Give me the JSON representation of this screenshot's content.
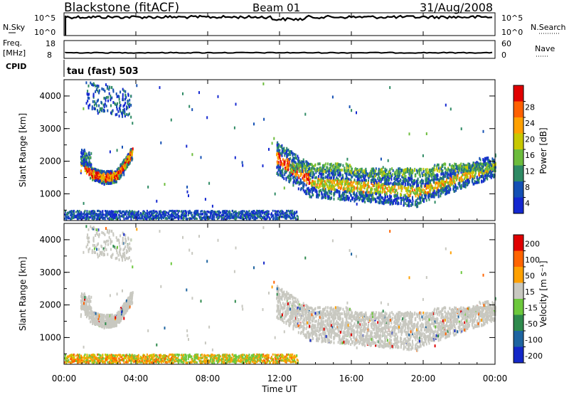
{
  "header": {
    "station": "Blackstone (fitACF)",
    "beam": "Beam 01",
    "date": "31/Aug/2008"
  },
  "status_panels": {
    "nsky_label": "N.Sky",
    "nsky_ticks": [
      "10^5",
      "10^0"
    ],
    "nsky_right_ticks": [
      "10^5",
      "10^0"
    ],
    "nsearch_label": "N.Search",
    "freq_label_1": "Freq.",
    "freq_label_2": "[MHz]",
    "freq_ticks": [
      "18",
      "8"
    ],
    "nave_ticks": [
      "60",
      "0"
    ],
    "nave_label": "Nave",
    "cpid_label": "CPID",
    "cpid_value": "tau (fast) 503"
  },
  "x_axis": {
    "label": "Time UT",
    "ticks": [
      "00:00",
      "04:00",
      "08:00",
      "12:00",
      "16:00",
      "20:00",
      "00:00"
    ]
  },
  "chart_data": [
    {
      "type": "heatmap",
      "name": "power",
      "xlabel": "Time UT",
      "ylabel": "Slant Range [km]",
      "yticks": [
        "1000",
        "2000",
        "3000",
        "4000"
      ],
      "xlim": [
        0,
        24
      ],
      "ylim": [
        180,
        4500
      ],
      "colorbar": {
        "label": "Power [dB]",
        "ticks": [
          "4",
          "8",
          "12",
          "16",
          "20",
          "24",
          "28"
        ],
        "colors": [
          "#1428d0",
          "#1450b4",
          "#2e8a64",
          "#6cbc3c",
          "#c8c800",
          "#ffa000",
          "#ff6000",
          "#e00000"
        ]
      },
      "regions": [
        {
          "t0": 0.9,
          "t1": 3.9,
          "r0": 1450,
          "r1": 2300,
          "note": "arc"
        },
        {
          "t0": 1.2,
          "t1": 3.7,
          "r0": 3600,
          "r1": 4450
        },
        {
          "t0": 11.8,
          "t1": 24.0,
          "r0": 900,
          "r1": 2300
        },
        {
          "t0": 0.0,
          "t1": 13.0,
          "r0": 200,
          "r1": 500
        }
      ]
    },
    {
      "type": "heatmap",
      "name": "velocity",
      "xlabel": "Time UT",
      "ylabel": "Slant Range [km]",
      "yticks": [
        "1000",
        "2000",
        "3000",
        "4000"
      ],
      "xlim": [
        0,
        24
      ],
      "ylim": [
        180,
        4500
      ],
      "colorbar": {
        "label": "Velocity [m s⁻¹]",
        "ticks": [
          "200",
          "100",
          "50",
          "15",
          "-15",
          "-50",
          "-100",
          "-200"
        ],
        "colors": [
          "#1428c8",
          "#1e64a0",
          "#2e8a4c",
          "#6cc83c",
          "#c8c8c0",
          "#ffa000",
          "#ff6400",
          "#e00000"
        ]
      }
    }
  ]
}
